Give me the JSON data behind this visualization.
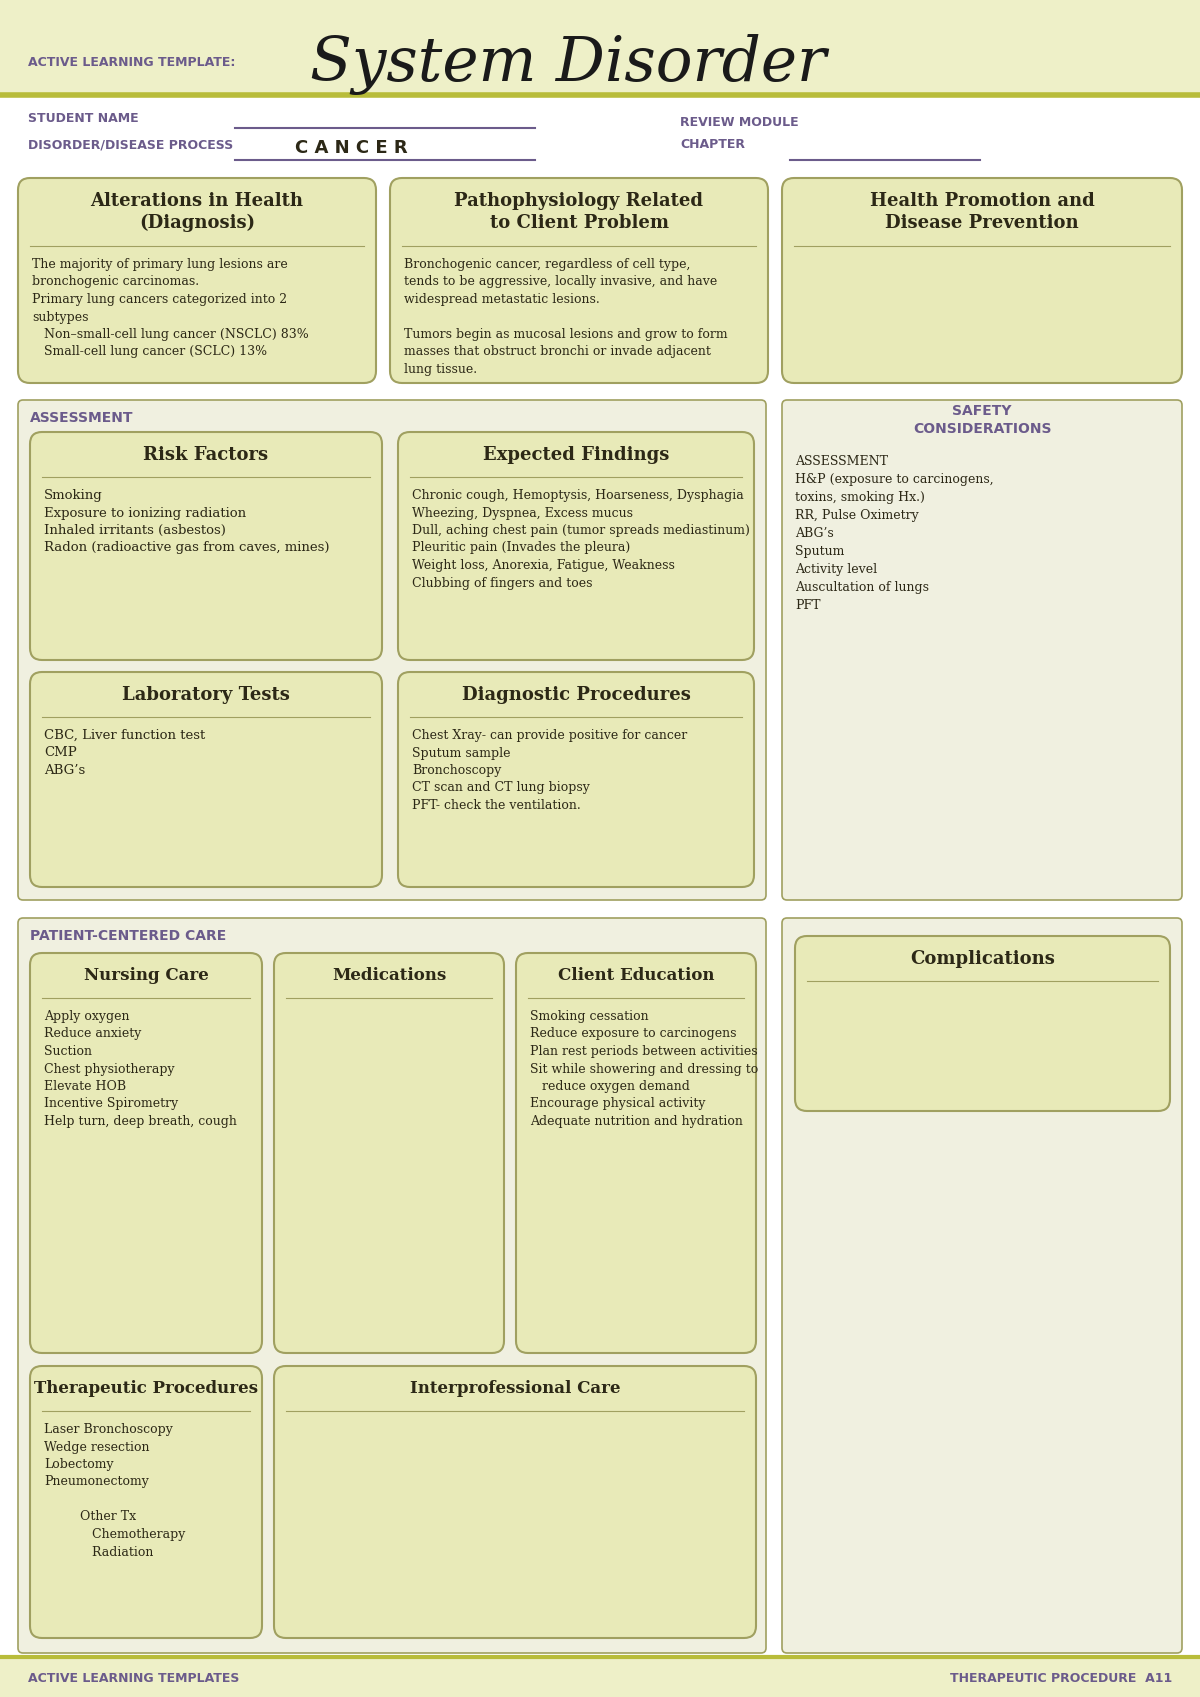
{
  "bg_color": "#ffffff",
  "header_bg": "#eef0c8",
  "olive_line": "#b8bc3a",
  "purple_text": "#6b5b8b",
  "dark_text": "#2c2816",
  "box_fill": "#e8eab8",
  "box_border": "#a0a060",
  "section_bg": "#f0f0e0",
  "title_text": "System Disorder",
  "template_label": "ACTIVE LEARNING TEMPLATE:",
  "student_name_label": "STUDENT NAME",
  "disorder_label": "DISORDER/DISEASE PROCESS",
  "disorder_value": "C A N C E R",
  "review_module_label": "REVIEW MODULE",
  "chapter_label": "CHAPTER",
  "assessment_label": "ASSESSMENT",
  "safety_label": "SAFETY\nCONSIDERATIONS",
  "patient_care_label": "PATIENT-CENTERED CARE",
  "footer_left": "ACTIVE LEARNING TEMPLATES",
  "footer_right": "THERAPEUTIC PROCEDURE  A11",
  "box1_title": "Alterations in Health\n(Diagnosis)",
  "box1_body": "The majority of primary lung lesions are\nbronchogenic carcinomas.\nPrimary lung cancers categorized into 2\nsubtypes\n   Non–small-cell lung cancer (NSCLC) 83%\n   Small-cell lung cancer (SCLC) 13%",
  "box2_title": "Pathophysiology Related\nto Client Problem",
  "box2_body": "Bronchogenic cancer, regardless of cell type,\ntends to be aggressive, locally invasive, and have\nwidespread metastatic lesions.\n\nTumors begin as mucosal lesions and grow to form\nmasses that obstruct bronchi or invade adjacent\nlung tissue.",
  "box3_title": "Health Promotion and\nDisease Prevention",
  "box3_body": "",
  "box4_title": "Risk Factors",
  "box4_body": "Smoking\nExposure to ionizing radiation\nInhaled irritants (asbestos)\nRadon (radioactive gas from caves, mines)",
  "box5_title": "Expected Findings",
  "box5_body": "Chronic cough, Hemoptysis, Hoarseness, Dysphagia\nWheezing, Dyspnea, Excess mucus\nDull, aching chest pain (tumor spreads mediastinum)\nPleuritic pain (Invades the pleura)\nWeight loss, Anorexia, Fatigue, Weakness\nClubbing of fingers and toes",
  "box6_title": "Laboratory Tests",
  "box6_body": "CBC, Liver function test\nCMP\nABG’s",
  "box7_title": "Diagnostic Procedures",
  "box7_body": "Chest Xray- can provide positive for cancer\nSputum sample\nBronchoscopy\nCT scan and CT lung biopsy\nPFT- check the ventilation.",
  "safety_body": "ASSESSMENT\nH&P (exposure to carcinogens,\ntoxins, smoking Hx.)\nRR, Pulse Oximetry\nABG’s\nSputum\nActivity level\nAuscultation of lungs\nPFT",
  "box8_title": "Nursing Care",
  "box8_body": "Apply oxygen\nReduce anxiety\nSuction\nChest physiotherapy\nElevate HOB\nIncentive Spirometry\nHelp turn, deep breath, cough",
  "box9_title": "Medications",
  "box9_body": "",
  "box10_title": "Client Education",
  "box10_body": "Smoking cessation\nReduce exposure to carcinogens\nPlan rest periods between activities\nSit while showering and dressing to\n   reduce oxygen demand\nEncourage physical activity\nAdequate nutrition and hydration",
  "box11_title": "Therapeutic Procedures",
  "box11_body": "Laser Bronchoscopy\nWedge resection\nLobectomy\nPneumonectomy\n\n         Other Tx\n            Chemotherapy\n            Radiation",
  "box12_title": "Interprofessional Care",
  "box12_body": "",
  "complications_title": "Complications",
  "complications_body": ""
}
